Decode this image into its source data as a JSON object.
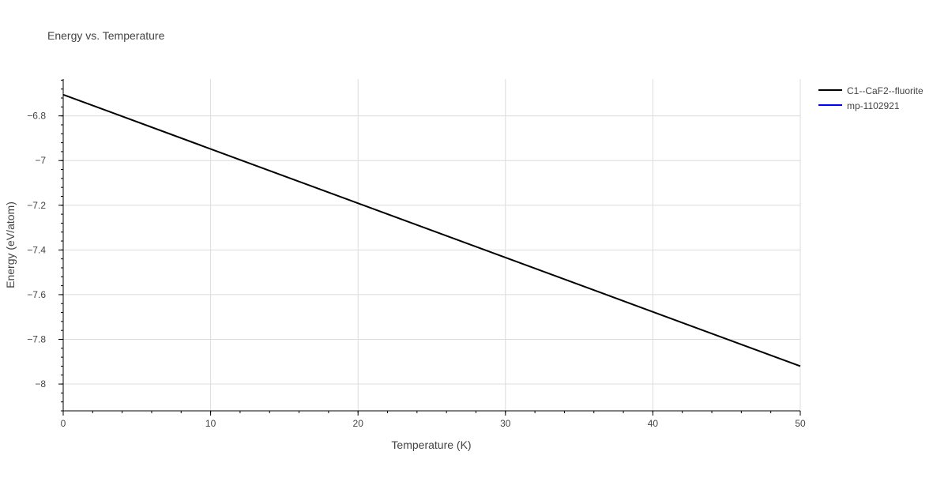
{
  "chart_data": {
    "type": "line",
    "title": "Energy vs. Temperature",
    "xlabel": "Temperature (K)",
    "ylabel": "Energy (eV/atom)",
    "xlim": [
      0,
      50
    ],
    "ylim": [
      -8.12,
      -6.635
    ],
    "x_ticks": [
      0,
      10,
      20,
      30,
      40,
      50
    ],
    "y_ticks": [
      -6.8,
      -7,
      -7.2,
      -7.4,
      -7.6,
      -7.8,
      -8
    ],
    "y_tick_labels": [
      "−6.8",
      "−7",
      "−7.2",
      "−7.4",
      "−7.6",
      "−7.8",
      "−8"
    ],
    "grid": true,
    "legend_position": "top-right",
    "series": [
      {
        "name": "C1--CaF2--fluorite",
        "color": "#000000",
        "x": [
          0,
          50
        ],
        "y": [
          -6.705,
          -7.92
        ]
      },
      {
        "name": "mp-1102921",
        "color": "#0000ff",
        "x": [],
        "y": []
      }
    ]
  }
}
